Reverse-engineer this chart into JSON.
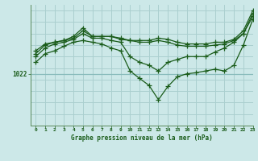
{
  "title": "Graphe pression niveau de la mer (hPa)",
  "background_color": "#cce8e8",
  "grid_color": "#aacfcf",
  "line_color": "#1a5c1a",
  "ylabel_text": "1022",
  "ylabel_value": 1022,
  "xlim": [
    -0.5,
    23
  ],
  "ylim": [
    1013,
    1034
  ],
  "xticks": [
    0,
    1,
    2,
    3,
    4,
    5,
    6,
    7,
    8,
    9,
    10,
    11,
    12,
    13,
    14,
    15,
    16,
    17,
    18,
    19,
    20,
    21,
    22,
    23
  ],
  "series": [
    [
      1026.0,
      1027.2,
      1027.5,
      1027.8,
      1028.5,
      1030.0,
      1028.5,
      1028.5,
      1028.5,
      1028.2,
      1027.8,
      1027.8,
      1027.8,
      1028.2,
      1028.0,
      1027.5,
      1027.2,
      1027.2,
      1027.2,
      1027.5,
      1027.5,
      1028.0,
      1029.5,
      1033.0
    ],
    [
      1025.5,
      1027.0,
      1027.5,
      1027.8,
      1028.2,
      1029.5,
      1028.5,
      1028.5,
      1028.5,
      1028.0,
      1027.8,
      1027.5,
      1027.5,
      1027.8,
      1027.5,
      1027.0,
      1026.8,
      1026.8,
      1026.8,
      1027.0,
      1027.2,
      1027.8,
      1029.0,
      1032.5
    ],
    [
      1025.0,
      1026.5,
      1027.2,
      1027.5,
      1028.0,
      1029.0,
      1028.2,
      1028.2,
      1027.8,
      1027.5,
      1025.0,
      1024.0,
      1023.5,
      1022.5,
      1024.0,
      1024.5,
      1025.0,
      1025.0,
      1025.0,
      1025.8,
      1026.5,
      1027.5,
      1029.0,
      1032.0
    ],
    [
      1024.0,
      1025.5,
      1026.0,
      1026.8,
      1027.5,
      1027.8,
      1027.5,
      1027.2,
      1026.5,
      1026.0,
      1022.5,
      1021.2,
      1020.0,
      1017.5,
      1019.8,
      1021.5,
      1022.0,
      1022.2,
      1022.5,
      1022.8,
      1022.5,
      1023.5,
      1027.0,
      1031.5
    ]
  ]
}
